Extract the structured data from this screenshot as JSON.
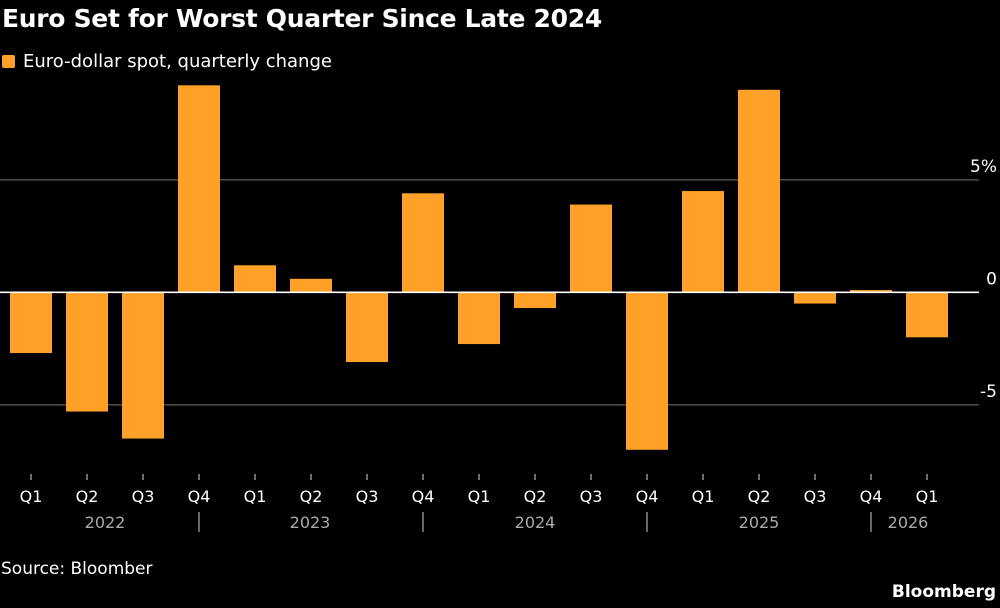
{
  "chart_data": {
    "type": "bar",
    "title": "Euro Set for Worst Quarter Since Late 2024",
    "legend": [
      {
        "name": "Euro-dollar spot, quarterly change",
        "color": "#ffa028"
      }
    ],
    "legend_placement": "top-left",
    "categories": [
      "Q1",
      "Q2",
      "Q3",
      "Q4",
      "Q1",
      "Q2",
      "Q3",
      "Q4",
      "Q1",
      "Q2",
      "Q3",
      "Q4",
      "Q1",
      "Q2",
      "Q3",
      "Q4",
      "Q1"
    ],
    "years": [
      "2022",
      "2023",
      "2024",
      "2025",
      "2026"
    ],
    "series": [
      {
        "name": "Euro-dollar spot, quarterly change",
        "values": [
          -2.7,
          -5.3,
          -6.5,
          9.2,
          1.2,
          0.6,
          -3.1,
          4.4,
          -2.3,
          -0.7,
          3.9,
          -7.0,
          4.5,
          9.0,
          -0.5,
          0.1,
          -2.0
        ]
      }
    ],
    "yticks": [
      {
        "value": 5,
        "label": "5%"
      },
      {
        "value": 0,
        "label": "0"
      },
      {
        "value": -5,
        "label": "-5"
      }
    ],
    "ylim": [
      -7.5,
      9.5
    ],
    "grid": true,
    "axis_position": "right",
    "colors": {
      "bar": "#ffa028",
      "background": "#000000",
      "grid": "#555555",
      "zero": "#ffffff",
      "year_label": "#aaaaaa"
    }
  },
  "footer": {
    "source": "Source: Bloomber",
    "brand": "Bloomberg"
  }
}
